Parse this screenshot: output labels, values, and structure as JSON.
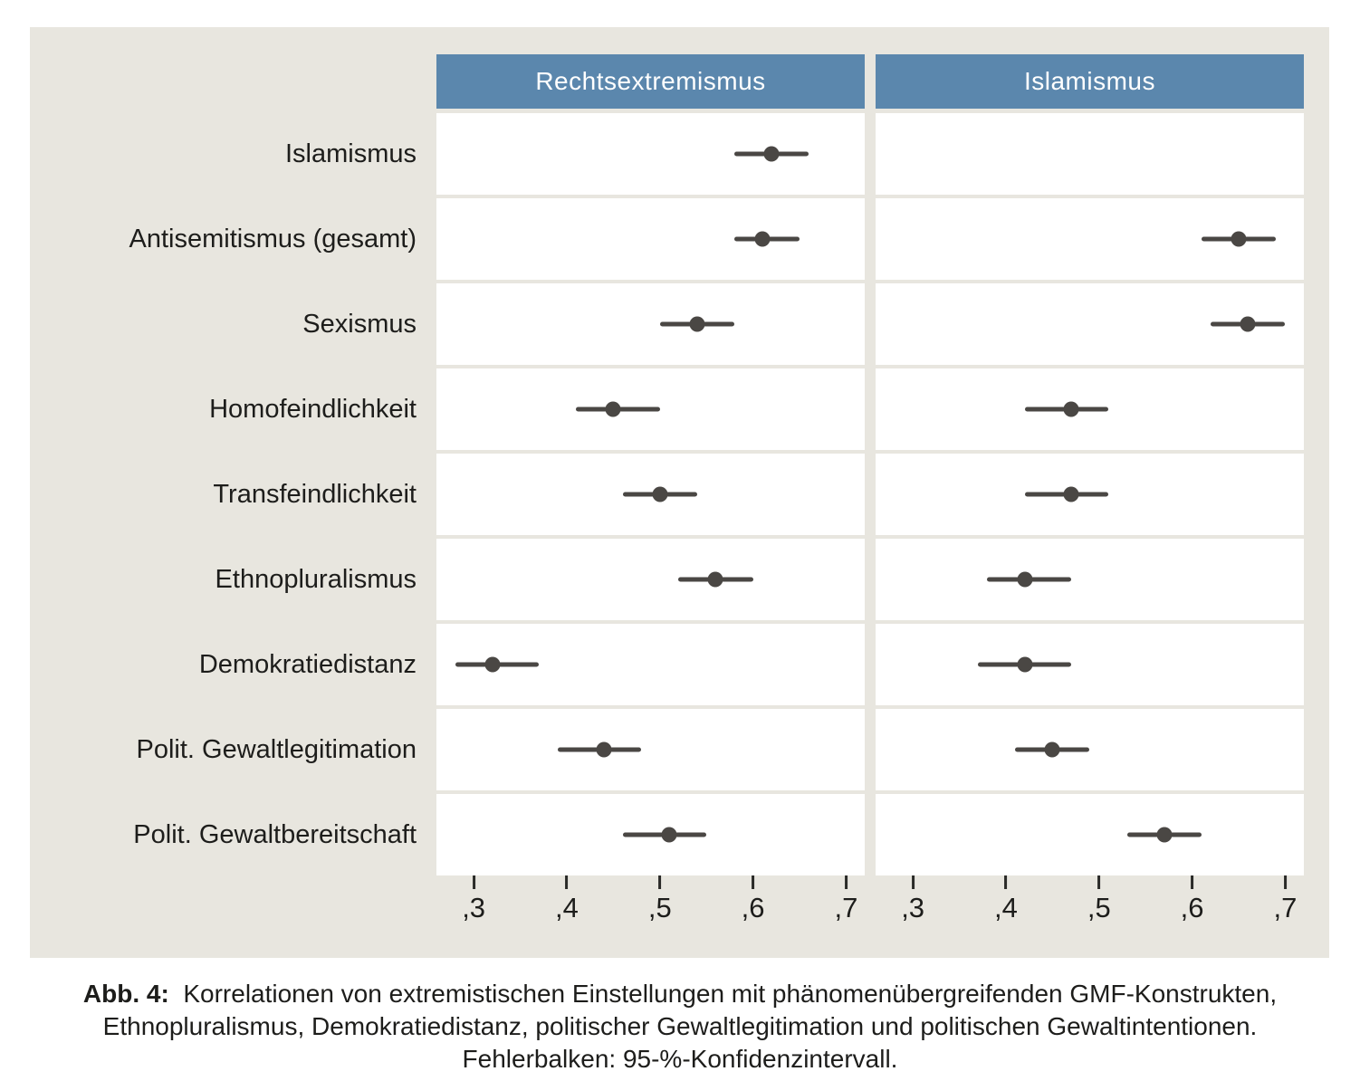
{
  "figure": {
    "caption": {
      "label": "Abb. 4:",
      "line1": "Korrelationen von extremistischen Einstellungen mit phänomenübergreifenden GMF-Konstrukten,",
      "line2": "Ethnopluralismus, Demokratiedistanz, politischer Gewaltlegitimation und politischen Gewaltintentionen.",
      "line3": "Fehlerbalken: 95-%-Konfidenzintervall."
    },
    "colors": {
      "figure_background": "#e8e6df",
      "panel_header_blue": "#5b87ad",
      "row_background": "#ffffff",
      "marker_dark_gray": "#4a4744",
      "text": "#1d1d1b"
    }
  },
  "chart_data": {
    "type": "scatter",
    "subtype": "dot-plot-with-error-bars",
    "title": "",
    "xlabel": "",
    "ylabel": "",
    "note": "Fehlerbalken: 95-%-Konfidenzintervall.",
    "grid": false,
    "legend": "none",
    "xlim": [
      0.26,
      0.72
    ],
    "xticks": [
      {
        "value": 0.3,
        "label": ",3"
      },
      {
        "value": 0.4,
        "label": ",4"
      },
      {
        "value": 0.5,
        "label": ",5"
      },
      {
        "value": 0.6,
        "label": ",6"
      },
      {
        "value": 0.7,
        "label": ",7"
      }
    ],
    "categories": [
      "Islamismus",
      "Antisemitismus (gesamt)",
      "Sexismus",
      "Homofeindlichkeit",
      "Transfeindlichkeit",
      "Ethnopluralismus",
      "Demokratiedistanz",
      "Polit. Gewaltlegitimation",
      "Polit. Gewaltbereitschaft"
    ],
    "panels": [
      {
        "title": "Rechtsextremismus",
        "points": [
          {
            "r": 0.62,
            "ci": [
              0.58,
              0.66
            ]
          },
          {
            "r": 0.61,
            "ci": [
              0.58,
              0.65
            ]
          },
          {
            "r": 0.54,
            "ci": [
              0.5,
              0.58
            ]
          },
          {
            "r": 0.45,
            "ci": [
              0.41,
              0.5
            ]
          },
          {
            "r": 0.5,
            "ci": [
              0.46,
              0.54
            ]
          },
          {
            "r": 0.56,
            "ci": [
              0.52,
              0.6
            ]
          },
          {
            "r": 0.32,
            "ci": [
              0.28,
              0.37
            ]
          },
          {
            "r": 0.44,
            "ci": [
              0.39,
              0.48
            ]
          },
          {
            "r": 0.51,
            "ci": [
              0.46,
              0.55
            ]
          }
        ]
      },
      {
        "title": "Islamismus",
        "points": [
          null,
          {
            "r": 0.65,
            "ci": [
              0.61,
              0.69
            ]
          },
          {
            "r": 0.66,
            "ci": [
              0.62,
              0.7
            ]
          },
          {
            "r": 0.47,
            "ci": [
              0.42,
              0.51
            ]
          },
          {
            "r": 0.47,
            "ci": [
              0.42,
              0.51
            ]
          },
          {
            "r": 0.42,
            "ci": [
              0.38,
              0.47
            ]
          },
          {
            "r": 0.42,
            "ci": [
              0.37,
              0.47
            ]
          },
          {
            "r": 0.45,
            "ci": [
              0.41,
              0.49
            ]
          },
          {
            "r": 0.57,
            "ci": [
              0.53,
              0.61
            ]
          }
        ]
      }
    ]
  }
}
